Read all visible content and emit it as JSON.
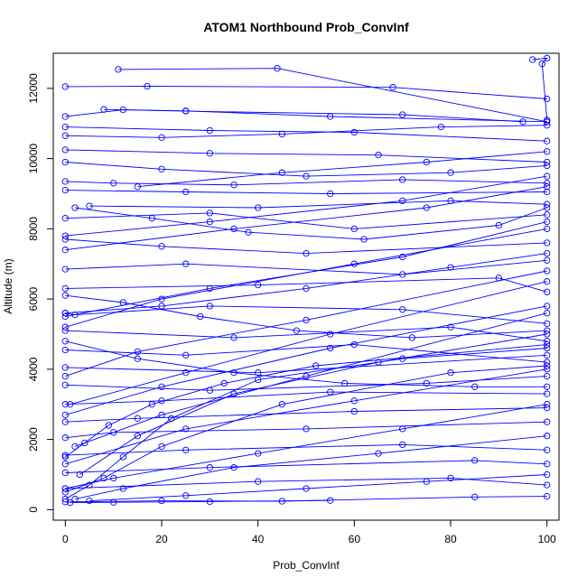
{
  "chart_data": {
    "type": "line",
    "title": "ATOM1 Northbound Prob_ConvInf",
    "xlabel": "Prob_ConvInf",
    "ylabel": "Altitude (m)",
    "xlim": [
      -2.5,
      102.5
    ],
    "ylim": [
      -300,
      13000
    ],
    "x_ticks": [
      0,
      20,
      40,
      60,
      80,
      100
    ],
    "y_ticks": [
      0,
      2000,
      4000,
      6000,
      8000,
      10000,
      12000
    ],
    "grid": false,
    "legend": "none",
    "series_style": {
      "line_color": "#0000ff",
      "marker": "open-circle"
    },
    "series": [
      {
        "points": [
          [
            0,
            12050
          ],
          [
            17,
            12060
          ],
          [
            68,
            12030
          ],
          [
            100,
            11700
          ]
        ]
      },
      {
        "points": [
          [
            11,
            12540
          ],
          [
            44,
            12570
          ],
          [
            100,
            11050
          ]
        ]
      },
      {
        "points": [
          [
            97,
            12820
          ],
          [
            100,
            12860
          ],
          [
            99,
            12700
          ],
          [
            100,
            11100
          ]
        ]
      },
      {
        "points": [
          [
            0,
            11200
          ],
          [
            12,
            11390
          ],
          [
            25,
            11360
          ],
          [
            55,
            11200
          ],
          [
            100,
            11050
          ]
        ]
      },
      {
        "points": [
          [
            0,
            10650
          ],
          [
            20,
            10600
          ],
          [
            45,
            10700
          ],
          [
            78,
            10900
          ],
          [
            100,
            10950
          ]
        ]
      },
      {
        "points": [
          [
            0,
            10250
          ],
          [
            30,
            10150
          ],
          [
            65,
            10100
          ],
          [
            100,
            9900
          ]
        ]
      },
      {
        "points": [
          [
            0,
            9350
          ],
          [
            10,
            9300
          ],
          [
            35,
            9250
          ],
          [
            70,
            9400
          ],
          [
            100,
            9300
          ]
        ]
      },
      {
        "points": [
          [
            0,
            9100
          ],
          [
            25,
            9050
          ],
          [
            55,
            9000
          ],
          [
            100,
            9050
          ]
        ]
      },
      {
        "points": [
          [
            5,
            8650
          ],
          [
            40,
            8600
          ],
          [
            80,
            8800
          ],
          [
            100,
            8700
          ]
        ]
      },
      {
        "points": [
          [
            0,
            8300
          ],
          [
            30,
            8450
          ],
          [
            60,
            8000
          ],
          [
            100,
            8400
          ]
        ]
      },
      {
        "points": [
          [
            0,
            7700
          ],
          [
            20,
            7500
          ],
          [
            50,
            7300
          ],
          [
            100,
            7600
          ]
        ]
      },
      {
        "points": [
          [
            0,
            6850
          ],
          [
            25,
            7000
          ],
          [
            70,
            6700
          ],
          [
            100,
            7100
          ]
        ]
      },
      {
        "points": [
          [
            0,
            6300
          ],
          [
            40,
            6400
          ],
          [
            90,
            6600
          ],
          [
            100,
            6200
          ]
        ]
      },
      {
        "points": [
          [
            0,
            5600
          ],
          [
            2,
            5550
          ],
          [
            30,
            5800
          ],
          [
            70,
            5700
          ],
          [
            100,
            5300
          ]
        ]
      },
      {
        "points": [
          [
            0,
            5100
          ],
          [
            35,
            4900
          ],
          [
            80,
            5200
          ],
          [
            100,
            4800
          ]
        ]
      },
      {
        "points": [
          [
            0,
            4550
          ],
          [
            25,
            4400
          ],
          [
            60,
            4700
          ],
          [
            100,
            4200
          ]
        ]
      },
      {
        "points": [
          [
            0,
            4050
          ],
          [
            40,
            3900
          ],
          [
            100,
            4400
          ]
        ]
      },
      {
        "points": [
          [
            0,
            3550
          ],
          [
            30,
            3400
          ],
          [
            75,
            3600
          ],
          [
            100,
            3800
          ]
        ]
      },
      {
        "points": [
          [
            0,
            3000
          ],
          [
            20,
            3100
          ],
          [
            55,
            3350
          ],
          [
            100,
            3300
          ]
        ]
      },
      {
        "points": [
          [
            0,
            2500
          ],
          [
            15,
            2600
          ],
          [
            60,
            2800
          ],
          [
            100,
            2900
          ]
        ]
      },
      {
        "points": [
          [
            0,
            2050
          ],
          [
            10,
            2200
          ],
          [
            50,
            2300
          ],
          [
            100,
            2500
          ]
        ]
      },
      {
        "points": [
          [
            0,
            1550
          ],
          [
            25,
            1700
          ],
          [
            70,
            1850
          ],
          [
            100,
            1700
          ]
        ]
      },
      {
        "points": [
          [
            0,
            1050
          ],
          [
            30,
            1200
          ],
          [
            85,
            1400
          ],
          [
            100,
            1300
          ]
        ]
      },
      {
        "points": [
          [
            0,
            600
          ],
          [
            40,
            800
          ],
          [
            80,
            900
          ],
          [
            100,
            700
          ]
        ]
      },
      {
        "points": [
          [
            0,
            220
          ],
          [
            20,
            250
          ],
          [
            45,
            240
          ],
          [
            85,
            360
          ],
          [
            100,
            380
          ]
        ]
      },
      {
        "points": [
          [
            1,
            200
          ],
          [
            10,
            210
          ],
          [
            30,
            230
          ],
          [
            55,
            260
          ]
        ]
      },
      {
        "points": [
          [
            0,
            300
          ],
          [
            5,
            700
          ],
          [
            12,
            1500
          ],
          [
            22,
            2600
          ],
          [
            40,
            3700
          ],
          [
            70,
            4300
          ],
          [
            100,
            4600
          ]
        ]
      },
      {
        "points": [
          [
            0,
            500
          ],
          [
            8,
            900
          ],
          [
            20,
            1800
          ],
          [
            45,
            3000
          ],
          [
            80,
            3900
          ],
          [
            100,
            4100
          ]
        ]
      },
      {
        "points": [
          [
            3,
            1000
          ],
          [
            15,
            2100
          ],
          [
            35,
            3300
          ],
          [
            65,
            4200
          ],
          [
            100,
            5000
          ]
        ]
      },
      {
        "points": [
          [
            2,
            1800
          ],
          [
            20,
            2700
          ],
          [
            50,
            3800
          ],
          [
            100,
            5600
          ]
        ]
      },
      {
        "points": [
          [
            1,
            3000
          ],
          [
            25,
            3900
          ],
          [
            55,
            5000
          ],
          [
            100,
            6500
          ]
        ]
      },
      {
        "points": [
          [
            0,
            5500
          ],
          [
            30,
            6300
          ],
          [
            70,
            7200
          ],
          [
            100,
            8200
          ]
        ]
      },
      {
        "points": [
          [
            0,
            7400
          ],
          [
            35,
            8000
          ],
          [
            75,
            8600
          ],
          [
            100,
            9200
          ]
        ]
      },
      {
        "points": [
          [
            100,
            9500
          ],
          [
            70,
            8800
          ],
          [
            30,
            8200
          ],
          [
            0,
            7800
          ]
        ]
      },
      {
        "points": [
          [
            100,
            8000
          ],
          [
            60,
            7000
          ],
          [
            20,
            6000
          ],
          [
            0,
            5200
          ]
        ]
      },
      {
        "points": [
          [
            100,
            6800
          ],
          [
            50,
            5400
          ],
          [
            15,
            4500
          ],
          [
            0,
            3800
          ]
        ]
      },
      {
        "points": [
          [
            100,
            5800
          ],
          [
            55,
            4600
          ],
          [
            20,
            3500
          ],
          [
            0,
            2700
          ]
        ]
      },
      {
        "points": [
          [
            100,
            4000
          ],
          [
            60,
            3100
          ],
          [
            25,
            2300
          ],
          [
            0,
            1300
          ]
        ]
      },
      {
        "points": [
          [
            100,
            3000
          ],
          [
            70,
            2300
          ],
          [
            40,
            1600
          ],
          [
            10,
            900
          ],
          [
            0,
            600
          ]
        ]
      },
      {
        "points": [
          [
            0,
            9900
          ],
          [
            20,
            9700
          ],
          [
            50,
            9500
          ],
          [
            80,
            9600
          ],
          [
            100,
            9800
          ]
        ]
      },
      {
        "points": [
          [
            0,
            10900
          ],
          [
            30,
            10800
          ],
          [
            60,
            10750
          ],
          [
            100,
            10500
          ]
        ]
      },
      {
        "points": [
          [
            8,
            11400
          ],
          [
            25,
            11350
          ],
          [
            70,
            11250
          ],
          [
            95,
            11050
          ]
        ]
      },
      {
        "points": [
          [
            100,
            10200
          ],
          [
            75,
            9900
          ],
          [
            45,
            9600
          ],
          [
            15,
            9200
          ]
        ]
      },
      {
        "points": [
          [
            100,
            7300
          ],
          [
            80,
            6900
          ],
          [
            50,
            6300
          ],
          [
            20,
            5800
          ],
          [
            0,
            5600
          ]
        ]
      },
      {
        "points": [
          [
            100,
            2100
          ],
          [
            65,
            1600
          ],
          [
            35,
            1200
          ],
          [
            12,
            600
          ],
          [
            2,
            300
          ]
        ]
      },
      {
        "points": [
          [
            100,
            1000
          ],
          [
            75,
            800
          ],
          [
            50,
            600
          ],
          [
            25,
            400
          ],
          [
            5,
            250
          ]
        ]
      },
      {
        "points": [
          [
            2,
            8600
          ],
          [
            18,
            8300
          ],
          [
            38,
            7900
          ],
          [
            62,
            7700
          ],
          [
            90,
            8100
          ],
          [
            100,
            8600
          ]
        ]
      },
      {
        "points": [
          [
            0,
            6100
          ],
          [
            12,
            5900
          ],
          [
            28,
            5500
          ],
          [
            48,
            5100
          ],
          [
            72,
            4900
          ],
          [
            100,
            5100
          ]
        ]
      },
      {
        "points": [
          [
            0,
            4800
          ],
          [
            15,
            4300
          ],
          [
            35,
            3900
          ],
          [
            58,
            3600
          ],
          [
            85,
            3500
          ],
          [
            100,
            3500
          ]
        ]
      },
      {
        "points": [
          [
            0,
            1500
          ],
          [
            4,
            1900
          ],
          [
            9,
            2400
          ],
          [
            18,
            3000
          ],
          [
            33,
            3600
          ],
          [
            52,
            4100
          ],
          [
            100,
            4700
          ]
        ]
      }
    ]
  }
}
